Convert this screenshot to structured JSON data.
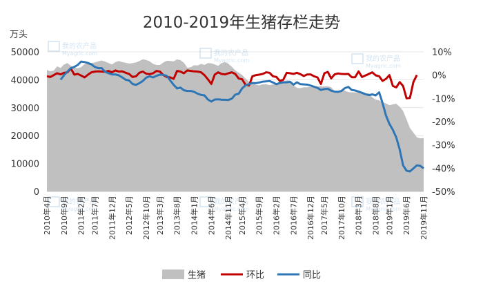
{
  "chart_data": {
    "type": "area",
    "title": "2010-2019年生猪存栏走势",
    "y_left_unit": "万头",
    "y_left_ticks": [
      0,
      10000,
      20000,
      30000,
      40000,
      50000
    ],
    "y_right_ticks": [
      "10%",
      "0%",
      "-10%",
      "-20%",
      "-30%",
      "-40%",
      "-50%"
    ],
    "y_left_range": [
      0,
      50000
    ],
    "y_right_range": [
      -50,
      10
    ],
    "x_tick_labels": [
      "2010年4月",
      "2010年9月",
      "2011年2月",
      "2011年7月",
      "2011年12月",
      "2012年5月",
      "2012年10月",
      "2013年3月",
      "2013年8月",
      "2014年1月",
      "2014年6月",
      "2014年11月",
      "2015年4月",
      "2015年9月",
      "2016年2月",
      "2016年7月",
      "2016年12月",
      "2017年5月",
      "2017年10月",
      "2018年3月",
      "2018年8月",
      "2019年1月",
      "2019年6月",
      "2019年11月"
    ],
    "watermark": "我的农产品 Myagric.com",
    "legend": [
      "生猪",
      "环比",
      "同比"
    ],
    "colors": {
      "生猪": "#c0c0c0",
      "环比": "#c00000",
      "同比": "#2e75b6"
    },
    "series": [
      {
        "name": "生猪",
        "axis": "left",
        "values": [
          43500,
          43000,
          43300,
          44800,
          44200,
          45500,
          46000,
          45000,
          44300,
          44100,
          44500,
          45600,
          46000,
          46000,
          46200,
          46600,
          46900,
          46500,
          46000,
          45500,
          46300,
          46700,
          46300,
          46100,
          45800,
          46000,
          46200,
          46700,
          47300,
          47100,
          46600,
          45700,
          45300,
          45300,
          46200,
          46800,
          46700,
          46600,
          47300,
          47000,
          46100,
          44300,
          44500,
          45200,
          45100,
          45700,
          45300,
          46000,
          45900,
          45500,
          45000,
          46000,
          46300,
          45700,
          44600,
          43400,
          42500,
          41700,
          40400,
          39300,
          38800,
          38200,
          38000,
          38400,
          38400,
          38100,
          38300,
          38600,
          39300,
          39500,
          39800,
          39700,
          38000,
          37100,
          37000,
          37300,
          37300,
          37400,
          37500,
          37600,
          37700,
          37600,
          37700,
          37300,
          35900,
          35700,
          36400,
          36100,
          35600,
          35500,
          35500,
          35400,
          35000,
          34900,
          35200,
          33700,
          32900,
          32600,
          32000,
          31500,
          30900,
          31200,
          31400,
          30300,
          28800,
          25800,
          22700,
          21100,
          19400,
          19000,
          19100
        ]
      },
      {
        "name": "环比",
        "axis": "right",
        "values": [
          -0.5,
          -0.8,
          0,
          0.8,
          0.3,
          1,
          1.2,
          2.8,
          0.2,
          0.5,
          -0.2,
          -1,
          0.2,
          1.2,
          1.5,
          1.6,
          1.5,
          1.4,
          1.8,
          1.2,
          2,
          1.5,
          1.6,
          1,
          0.5,
          -0.8,
          -0.5,
          1,
          1.5,
          0.6,
          0.4,
          0.8,
          1.8,
          1.5,
          0,
          -0.8,
          -1,
          -1.6,
          1.8,
          1.5,
          0.8,
          2,
          1.8,
          1.6,
          1.5,
          1.2,
          0,
          -1.8,
          -3.8,
          0.2,
          1.2,
          0.5,
          0.3,
          0.8,
          1.2,
          0.5,
          -1.5,
          -1.8,
          -4.2,
          -4.5,
          -0.5,
          0,
          0.2,
          0.5,
          1.2,
          1,
          -0.5,
          -0.8,
          -2.5,
          -2,
          1,
          0.8,
          0.5,
          1,
          0.4,
          -0.4,
          0.3,
          0.3,
          -0.5,
          -1,
          -3.8,
          0.8,
          1.4,
          -1.4,
          0.3,
          0.7,
          0.5,
          0.4,
          0.5,
          -0.9,
          -0.9,
          1.6,
          -0.8,
          -0.2,
          0.5,
          1.2,
          -0.1,
          -0.5,
          -2.5,
          -1.6,
          0,
          -4.6,
          -5.3,
          -3,
          -4.7,
          -10,
          -9.8,
          -3,
          0
        ]
      },
      {
        "name": "同比",
        "axis": "right",
        "values": [
          null,
          null,
          null,
          null,
          -2,
          0,
          1.5,
          3,
          3.5,
          4.4,
          5.8,
          5.6,
          5.2,
          4.6,
          3.5,
          3,
          3,
          1.4,
          0.8,
          0.3,
          0.3,
          -0.1,
          -1,
          -2,
          -2.3,
          -3.8,
          -4.2,
          -3.5,
          -2.5,
          -1.1,
          -0.5,
          -1,
          -0.3,
          0.2,
          0.1,
          -0.3,
          -2.3,
          -4.2,
          -5.7,
          -5.4,
          -6.5,
          -6.8,
          -6.8,
          -7.2,
          -8,
          -8.5,
          -8.7,
          -10.5,
          -11.4,
          -10.5,
          -10.4,
          -10.6,
          -10.6,
          -10.7,
          -10.1,
          -8.4,
          -8,
          -5.7,
          -4.4,
          -3.9,
          -3.4,
          -3.5,
          -3.2,
          -2.8,
          -2.7,
          -2.5,
          -3.2,
          -3.9,
          -3.4,
          -3.1,
          -3.1,
          -2.9,
          -4.1,
          -3.1,
          -3.9,
          -4,
          -4.1,
          -4.5,
          -5,
          -5.5,
          -6.4,
          -6,
          -5.9,
          -6.7,
          -7.1,
          -7.2,
          -6.8,
          -5.6,
          -5.1,
          -6.4,
          -6.6,
          -7.1,
          -7.6,
          -8.2,
          -8.6,
          -8.3,
          -8.7,
          -7.4,
          -12,
          -17.4,
          -21,
          -23.5,
          -26.8,
          -32,
          -38.8,
          -41.1,
          -41.4,
          -40.1,
          -38.8,
          -39,
          -40.1
        ]
      }
    ]
  },
  "legend": {
    "item1": "生猪",
    "item2": "环比",
    "item3": "同比"
  }
}
